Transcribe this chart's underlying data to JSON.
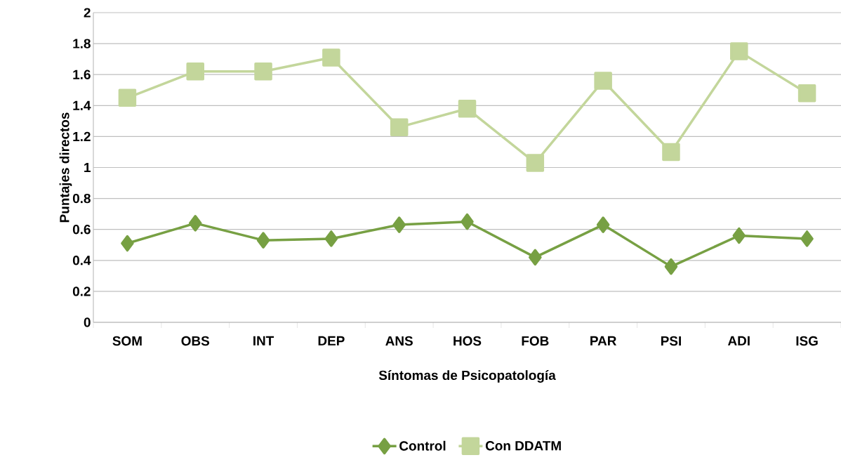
{
  "chart_data": {
    "type": "line",
    "xlabel": "Síntomas de Psicopatología",
    "ylabel": "Puntajes directos",
    "categories": [
      "SOM",
      "OBS",
      "INT",
      "DEP",
      "ANS",
      "HOS",
      "FOB",
      "PAR",
      "PSI",
      "ADI",
      "ISG"
    ],
    "series": [
      {
        "name": "Control",
        "color": "#77a043",
        "marker": "diamond",
        "values": [
          0.51,
          0.64,
          0.53,
          0.54,
          0.63,
          0.65,
          0.42,
          0.63,
          0.36,
          0.56,
          0.54
        ]
      },
      {
        "name": "Con DDATM",
        "color": "#c3d69b",
        "marker": "square",
        "values": [
          1.45,
          1.62,
          1.62,
          1.71,
          1.26,
          1.38,
          1.03,
          1.56,
          1.1,
          1.75,
          1.48
        ]
      }
    ],
    "ylim": [
      0,
      2
    ],
    "yticks": [
      0,
      0.2,
      0.4,
      0.6,
      0.8,
      1,
      1.2,
      1.4,
      1.6,
      1.8,
      2
    ],
    "grid": "y",
    "legend": "bottom",
    "line_style": "solid"
  }
}
